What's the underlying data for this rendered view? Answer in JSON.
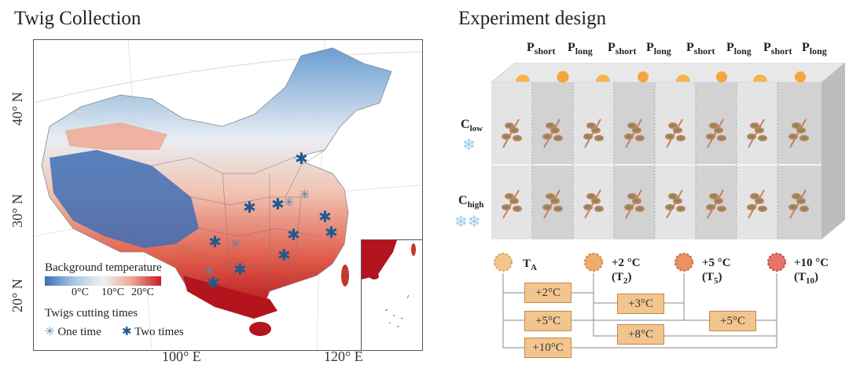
{
  "left_panel": {
    "title": "Twig Collection",
    "y_axis_labels": [
      "40° N",
      "30° N",
      "20° N"
    ],
    "x_axis_labels": [
      "100° E",
      "120° E"
    ],
    "legend": {
      "temperature_title": "Background temperature",
      "temperature_ticks": [
        "0°C",
        "10°C",
        "20°C"
      ],
      "cutting_title": "Twigs cutting times",
      "one_time_label": "One time",
      "two_times_label": "Two times"
    },
    "colors": {
      "cold": "#3f6fb5",
      "mid": "#f1f1f1",
      "warm": "#c81d25"
    }
  },
  "right_panel": {
    "title": "Experiment design",
    "photoperiods": [
      {
        "label": "P",
        "sub": "short"
      },
      {
        "label": "P",
        "sub": "long"
      },
      {
        "label": "P",
        "sub": "short"
      },
      {
        "label": "P",
        "sub": "long"
      },
      {
        "label": "P",
        "sub": "short"
      },
      {
        "label": "P",
        "sub": "long"
      },
      {
        "label": "P",
        "sub": "short"
      },
      {
        "label": "P",
        "sub": "long"
      }
    ],
    "chilling": [
      {
        "label": "C",
        "sub": "low"
      },
      {
        "label": "C",
        "sub": "high"
      }
    ],
    "treatments": [
      {
        "main": "T",
        "sub": "A",
        "extra": ""
      },
      {
        "main": "+2 °C",
        "sub": "2",
        "extra": "(T"
      },
      {
        "main": "+5 °C",
        "sub": "5",
        "extra": "(T"
      },
      {
        "main": "+10 °C",
        "sub": "10",
        "extra": "(T"
      }
    ],
    "close_paren": ")",
    "increments": [
      "+2°C",
      "+5°C",
      "+10°C",
      "+3°C",
      "+8°C",
      "+5°C"
    ],
    "colors": {
      "box": "#f2c58f",
      "sun": "#f5a53a",
      "branch": "#c87f5f",
      "leaf": "#7a8f5a"
    }
  }
}
